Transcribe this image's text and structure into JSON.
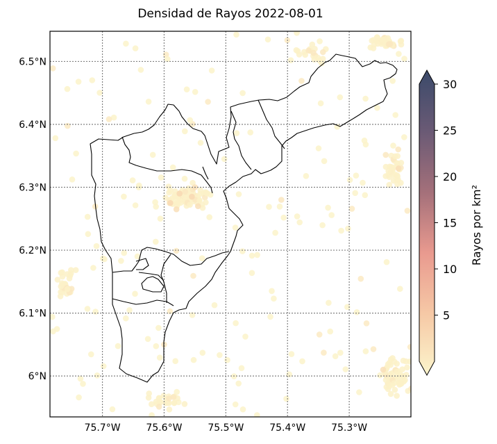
{
  "title": "Densidad de Rayos 2022-08-01",
  "map": {
    "lon_range": [
      -75.785,
      -75.2
    ],
    "lat_range": [
      5.935,
      6.548
    ],
    "lat_ticks": [
      {
        "value": 6.5,
        "label": "6.5°N"
      },
      {
        "value": 6.4,
        "label": "6.4°N"
      },
      {
        "value": 6.3,
        "label": "6.3°N"
      },
      {
        "value": 6.2,
        "label": "6.2°N"
      },
      {
        "value": 6.1,
        "label": "6.1°N"
      },
      {
        "value": 6.0,
        "label": "6°N"
      }
    ],
    "lon_ticks": [
      {
        "value": -75.7,
        "label": "75.7°W"
      },
      {
        "value": -75.6,
        "label": "75.6°W"
      },
      {
        "value": -75.5,
        "label": "75.5°W"
      },
      {
        "value": -75.4,
        "label": "75.4°W"
      },
      {
        "value": -75.3,
        "label": "75.3°W"
      }
    ],
    "gridlines": "dotted",
    "marker": "hexbin"
  },
  "colorbar": {
    "label": "Rayos por km²",
    "min": 0,
    "max": 30,
    "ticks": [
      "5",
      "10",
      "15",
      "20",
      "25",
      "30"
    ],
    "tick_values": [
      5,
      10,
      15,
      20,
      25,
      30
    ],
    "extend": "both",
    "colors": [
      "#fcf5cc",
      "#f6c9a6",
      "#e99a8f",
      "#a4707a",
      "#6a5a75",
      "#3b4a6a"
    ]
  },
  "chart_data": {
    "type": "heatmap",
    "title": "Densidad de Rayos 2022-08-01",
    "ylabel": "",
    "xlabel": "",
    "colorbar_label": "Rayos por km²",
    "value_range": [
      0,
      30
    ],
    "hotspots": [
      {
        "lon": -75.575,
        "lat": 6.29,
        "value": 4
      },
      {
        "lon": -75.555,
        "lat": 6.285,
        "value": 4
      },
      {
        "lon": -75.59,
        "lat": 6.275,
        "value": 4
      },
      {
        "lon": -75.545,
        "lat": 6.27,
        "value": 3
      },
      {
        "lon": -75.55,
        "lat": 6.3,
        "value": 3
      },
      {
        "lon": -75.58,
        "lat": 6.265,
        "value": 3
      },
      {
        "lon": -75.22,
        "lat": 6.33,
        "value": 3
      },
      {
        "lon": -75.245,
        "lat": 6.01,
        "value": 3
      },
      {
        "lon": -75.6,
        "lat": 6.05,
        "value": 2
      },
      {
        "lon": -75.41,
        "lat": 6.28,
        "value": 2
      }
    ]
  }
}
